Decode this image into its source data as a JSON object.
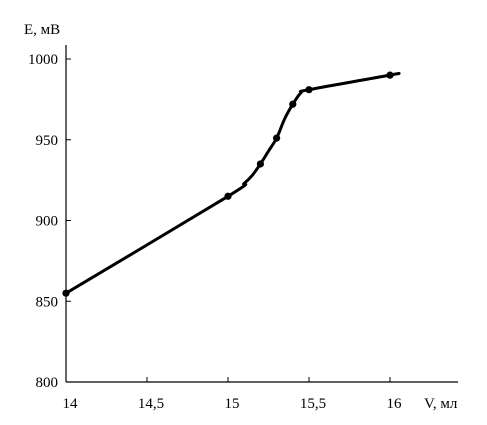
{
  "chart_data": {
    "type": "line",
    "xlabel": "V, мл",
    "ylabel": "E, мВ",
    "xlim": [
      14,
      16.4
    ],
    "ylim": [
      800,
      1010
    ],
    "x_ticks": [
      14,
      14.5,
      15,
      15.5,
      16
    ],
    "x_tick_labels": [
      "14",
      "14,5",
      "15",
      "15,5",
      "16"
    ],
    "y_ticks": [
      800,
      850,
      900,
      950,
      1000
    ],
    "y_tick_labels": [
      "800",
      "850",
      "900",
      "950",
      "1000"
    ],
    "grid": false,
    "line_color": "#000000",
    "series": [
      {
        "x": [
          14.0,
          15.0,
          15.2,
          15.3,
          15.4,
          15.5,
          16.0
        ],
        "y": [
          855,
          915,
          935,
          951,
          972,
          981,
          990
        ]
      }
    ],
    "curve": {
      "x": [
        14.0,
        15.0,
        15.1,
        15.15,
        15.2,
        15.25,
        15.3,
        15.35,
        15.4,
        15.45,
        15.5,
        16.0,
        16.05
      ],
      "y": [
        855,
        915,
        923,
        928,
        935,
        943,
        951,
        963,
        972,
        979,
        981,
        990,
        991
      ]
    }
  }
}
